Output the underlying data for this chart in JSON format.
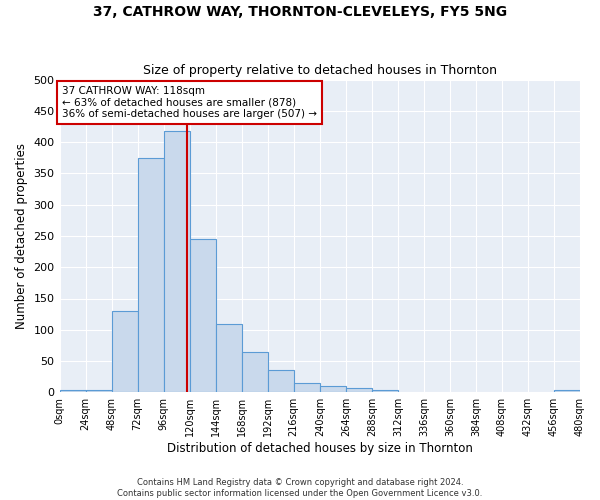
{
  "title": "37, CATHROW WAY, THORNTON-CLEVELEYS, FY5 5NG",
  "subtitle": "Size of property relative to detached houses in Thornton",
  "xlabel": "Distribution of detached houses by size in Thornton",
  "ylabel": "Number of detached properties",
  "bin_edges": [
    0,
    24,
    48,
    72,
    96,
    120,
    144,
    168,
    192,
    216,
    240,
    264,
    288,
    312,
    336,
    360,
    384,
    408,
    432,
    456,
    480
  ],
  "bar_heights": [
    3,
    3,
    130,
    375,
    418,
    245,
    110,
    65,
    35,
    15,
    10,
    7,
    3,
    0,
    0,
    0,
    0,
    0,
    0,
    3
  ],
  "bar_color": "#c9d9ec",
  "bar_edge_color": "#5b9bd5",
  "property_size": 118,
  "red_line_color": "#cc0000",
  "annotation_line1": "37 CATHROW WAY: 118sqm",
  "annotation_line2": "← 63% of detached houses are smaller (878)",
  "annotation_line3": "36% of semi-detached houses are larger (507) →",
  "annotation_box_color": "#ffffff",
  "annotation_box_edge_color": "#cc0000",
  "ylim": [
    0,
    500
  ],
  "xlim": [
    0,
    480
  ],
  "bg_color": "#e8eef6",
  "title_fontsize": 10,
  "subtitle_fontsize": 9,
  "footer_line1": "Contains HM Land Registry data © Crown copyright and database right 2024.",
  "footer_line2": "Contains public sector information licensed under the Open Government Licence v3.0."
}
